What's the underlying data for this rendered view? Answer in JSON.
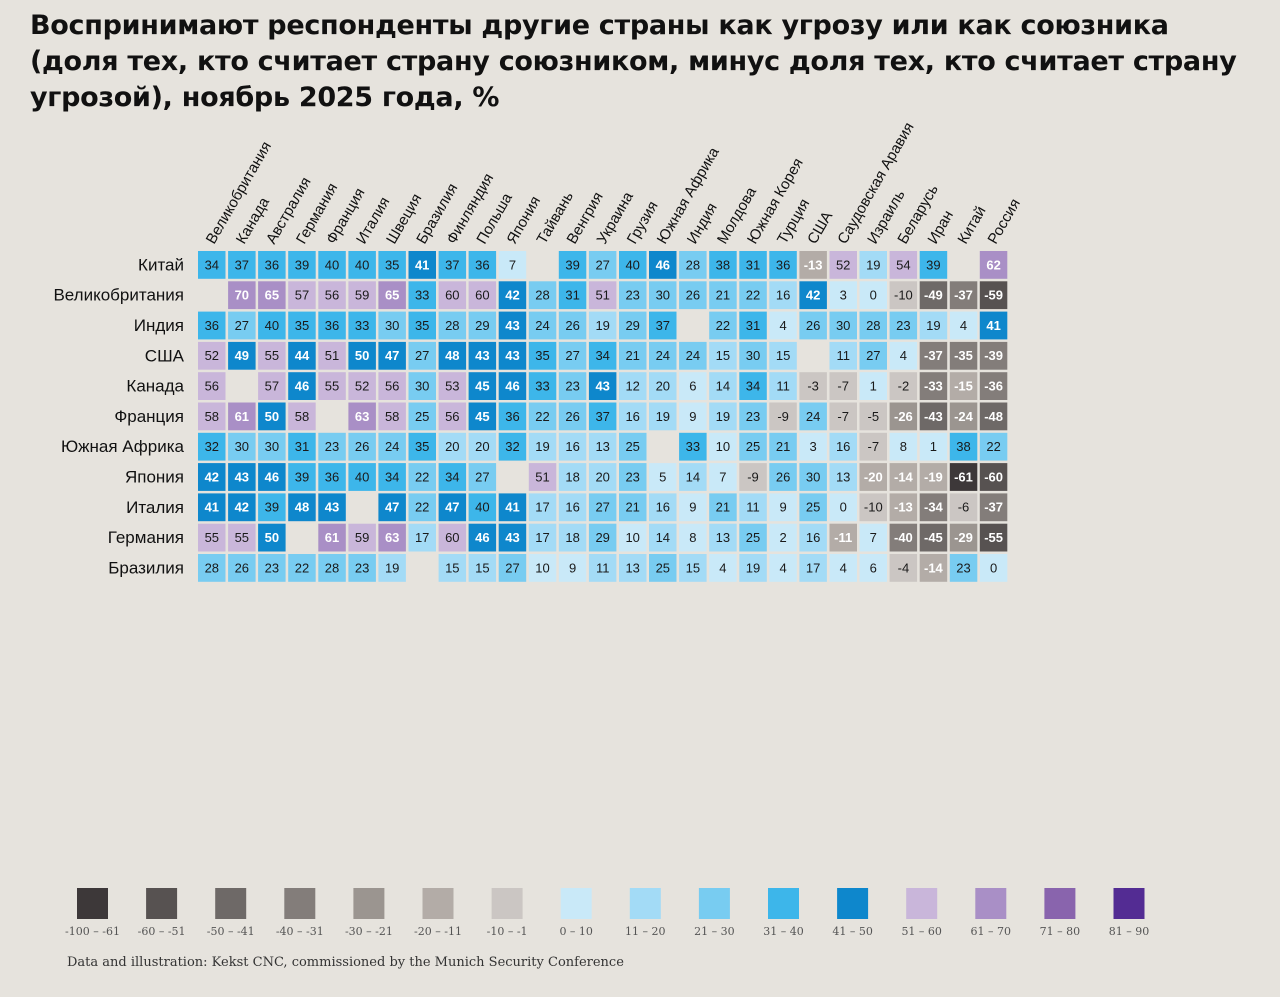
{
  "title": "Воспринимают респонденты другие страны как угрозу или как союзника (доля тех, кто считает страну союзником, минус доля тех, кто считает страну угрозой), ноябрь 2025 года, %",
  "source": "Data and illustration: Kekst CNC, commissioned by the Munich Security Conference",
  "chart_data": {
    "type": "heatmap",
    "columns": [
      "Великобритания",
      "Канада",
      "Австралия",
      "Германия",
      "Франция",
      "Италия",
      "Швеция",
      "Бразилия",
      "Финляндия",
      "Польша",
      "Япония",
      "Тайвань",
      "Венгрия",
      "Украина",
      "Грузия",
      "Южная Африка",
      "Индия",
      "Молдова",
      "Южная Корея",
      "Турция",
      "США",
      "Саудовская Аравия",
      "Израиль",
      "Беларусь",
      "Иран",
      "Китай",
      "Россия"
    ],
    "rows": [
      "Китай",
      "Великобритания",
      "Индия",
      "США",
      "Канада",
      "Франция",
      "Южная Африка",
      "Япония",
      "Италия",
      "Германия",
      "Бразилия"
    ],
    "values": [
      [
        34,
        37,
        36,
        39,
        40,
        40,
        35,
        41,
        37,
        36,
        7,
        null,
        39,
        27,
        40,
        46,
        28,
        38,
        31,
        36,
        -13,
        52,
        19,
        54,
        39,
        null,
        62
      ],
      [
        null,
        70,
        65,
        57,
        56,
        59,
        65,
        33,
        60,
        60,
        42,
        28,
        31,
        51,
        23,
        30,
        26,
        21,
        22,
        16,
        42,
        3,
        0,
        -10,
        -49,
        -37,
        -59
      ],
      [
        36,
        27,
        40,
        35,
        36,
        33,
        30,
        35,
        28,
        29,
        43,
        24,
        26,
        19,
        29,
        37,
        null,
        22,
        31,
        4,
        26,
        30,
        28,
        23,
        19,
        4,
        41
      ],
      [
        52,
        49,
        55,
        44,
        51,
        50,
        47,
        27,
        48,
        43,
        43,
        35,
        27,
        34,
        21,
        24,
        24,
        15,
        30,
        15,
        null,
        11,
        27,
        4,
        -37,
        -35,
        -39
      ],
      [
        56,
        null,
        57,
        46,
        55,
        52,
        56,
        30,
        53,
        45,
        46,
        33,
        23,
        43,
        12,
        20,
        6,
        14,
        34,
        11,
        -3,
        -7,
        1,
        -2,
        -33,
        -15,
        -36
      ],
      [
        58,
        61,
        50,
        58,
        null,
        63,
        58,
        25,
        56,
        45,
        36,
        22,
        26,
        37,
        16,
        19,
        9,
        19,
        23,
        -9,
        24,
        -7,
        -5,
        -26,
        -43,
        -24,
        -48
      ],
      [
        32,
        30,
        30,
        31,
        23,
        26,
        24,
        35,
        20,
        20,
        32,
        19,
        16,
        13,
        25,
        null,
        33,
        10,
        25,
        21,
        3,
        16,
        -7,
        8,
        1,
        38,
        22
      ],
      [
        42,
        43,
        46,
        39,
        36,
        40,
        34,
        22,
        34,
        27,
        null,
        51,
        18,
        20,
        23,
        5,
        14,
        7,
        -9,
        26,
        30,
        13,
        -20,
        -14,
        -19,
        -61,
        -60
      ],
      [
        41,
        42,
        39,
        48,
        43,
        null,
        47,
        22,
        47,
        40,
        41,
        17,
        16,
        27,
        21,
        16,
        9,
        21,
        11,
        9,
        25,
        0,
        -10,
        -13,
        -34,
        -6,
        -37
      ],
      [
        55,
        55,
        50,
        null,
        61,
        59,
        63,
        17,
        60,
        46,
        43,
        17,
        18,
        29,
        10,
        14,
        8,
        13,
        25,
        2,
        16,
        -11,
        7,
        -40,
        -45,
        -29,
        -55
      ],
      [
        28,
        26,
        23,
        22,
        28,
        23,
        19,
        null,
        15,
        15,
        27,
        10,
        9,
        11,
        13,
        25,
        15,
        4,
        19,
        4,
        17,
        4,
        6,
        -4,
        -14,
        23,
        0
      ]
    ],
    "legend": [
      {
        "label": "-100 – -61",
        "color": "#3d3839"
      },
      {
        "label": "-60 – -51",
        "color": "#575251"
      },
      {
        "label": "-50 – -41",
        "color": "#6e6967"
      },
      {
        "label": "-40 – -31",
        "color": "#837d7a"
      },
      {
        "label": "-30 – -21",
        "color": "#9b9590"
      },
      {
        "label": "-20 – -11",
        "color": "#b3aca7"
      },
      {
        "label": "-10 – -1",
        "color": "#cbc6c3"
      },
      {
        "label": "0 – 10",
        "color": "#c9e9f8"
      },
      {
        "label": "11 – 20",
        "color": "#a3dbf6"
      },
      {
        "label": "21 – 30",
        "color": "#78ccf1"
      },
      {
        "label": "31 – 40",
        "color": "#3db6ea"
      },
      {
        "label": "41 – 50",
        "color": "#0e87cc"
      },
      {
        "label": "51 – 60",
        "color": "#c9b6da"
      },
      {
        "label": "61 – 70",
        "color": "#a98fc6"
      },
      {
        "label": "71 – 80",
        "color": "#8964ad"
      },
      {
        "label": "81 – 90",
        "color": "#532c93"
      }
    ]
  }
}
